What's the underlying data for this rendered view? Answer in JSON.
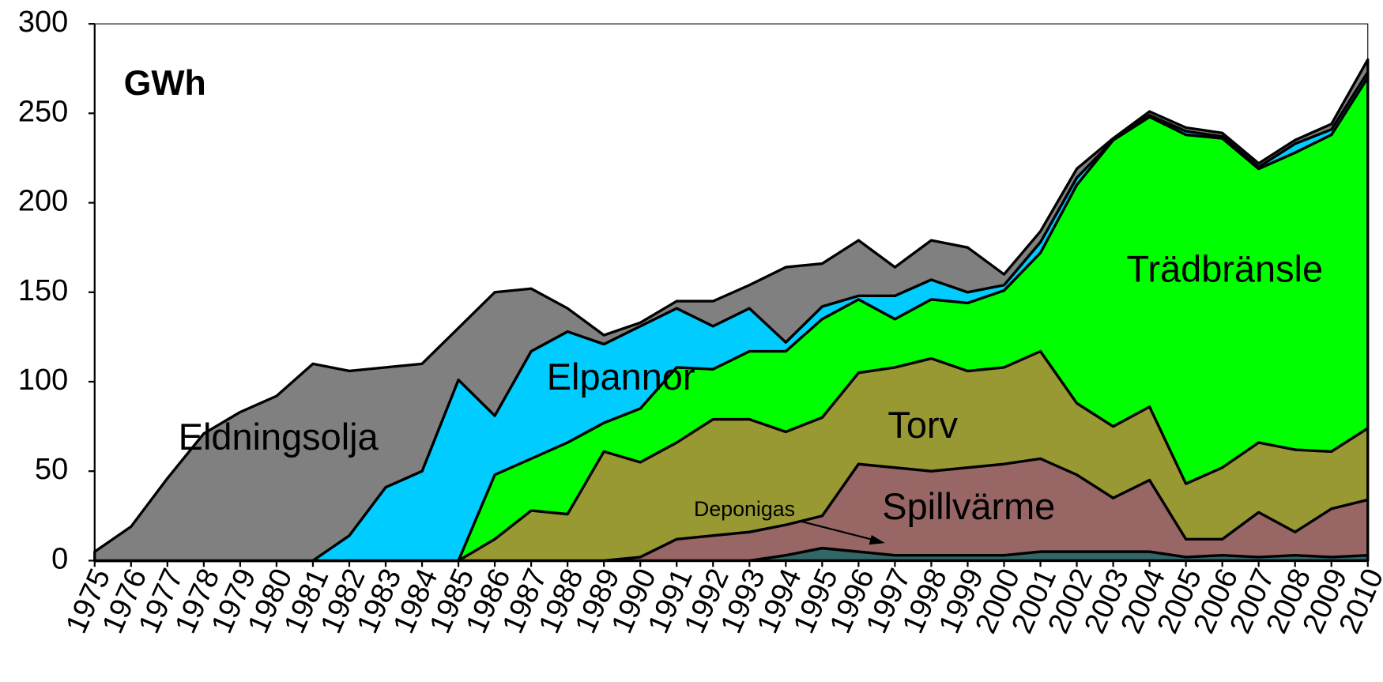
{
  "chart_data": {
    "type": "stacked-area",
    "y_label": "GWh",
    "x": [
      1975,
      1976,
      1977,
      1978,
      1979,
      1980,
      1981,
      1982,
      1983,
      1984,
      1985,
      1986,
      1987,
      1988,
      1989,
      1990,
      1991,
      1992,
      1993,
      1994,
      1995,
      1996,
      1997,
      1998,
      1999,
      2000,
      2001,
      2002,
      2003,
      2004,
      2005,
      2006,
      2007,
      2008,
      2009,
      2010
    ],
    "xlim": [
      1975,
      2010
    ],
    "xticks": [
      1975,
      1976,
      1977,
      1978,
      1979,
      1980,
      1981,
      1982,
      1983,
      1984,
      1985,
      1986,
      1987,
      1988,
      1989,
      1990,
      1991,
      1992,
      1993,
      1994,
      1995,
      1996,
      1997,
      1998,
      1999,
      2000,
      2001,
      2002,
      2003,
      2004,
      2005,
      2006,
      2007,
      2008,
      2009,
      2010
    ],
    "ylim": [
      0,
      300
    ],
    "yticks": [
      0,
      50,
      100,
      150,
      200,
      250,
      300
    ],
    "series": [
      {
        "name": "Deponigas",
        "color": "#336666",
        "values": [
          0,
          0,
          0,
          0,
          0,
          0,
          0,
          0,
          0,
          0,
          0,
          0,
          0,
          0,
          0,
          0,
          0,
          0,
          0,
          3,
          7,
          5,
          3,
          3,
          3,
          3,
          5,
          5,
          5,
          5,
          2,
          3,
          2,
          3,
          2,
          3
        ]
      },
      {
        "name": "Spillvärme",
        "color": "#996666",
        "values": [
          0,
          0,
          0,
          0,
          0,
          0,
          0,
          0,
          0,
          0,
          0,
          0,
          0,
          0,
          0,
          2,
          12,
          14,
          16,
          17,
          18,
          49,
          49,
          47,
          49,
          51,
          52,
          43,
          30,
          40,
          10,
          9,
          25,
          13,
          27,
          31
        ]
      },
      {
        "name": "Torv",
        "color": "#999933",
        "values": [
          0,
          0,
          0,
          0,
          0,
          0,
          0,
          0,
          0,
          0,
          0,
          12,
          28,
          26,
          61,
          53,
          54,
          65,
          63,
          52,
          55,
          51,
          56,
          63,
          54,
          54,
          60,
          40,
          40,
          41,
          31,
          40,
          39,
          46,
          32,
          40
        ]
      },
      {
        "name": "Trädbränsle",
        "color": "#00ff00",
        "values": [
          0,
          0,
          0,
          0,
          0,
          0,
          0,
          0,
          0,
          0,
          0,
          36,
          29,
          40,
          16,
          30,
          42,
          28,
          38,
          45,
          55,
          41,
          27,
          33,
          38,
          43,
          55,
          122,
          160,
          162,
          195,
          184,
          153,
          166,
          177,
          196
        ]
      },
      {
        "name": "Elpannor",
        "color": "#00ccff",
        "values": [
          0,
          0,
          0,
          0,
          0,
          0,
          0,
          14,
          41,
          50,
          101,
          33,
          60,
          62,
          44,
          46,
          33,
          24,
          24,
          5,
          7,
          2,
          13,
          11,
          6,
          3,
          6,
          4,
          0,
          1,
          2,
          1,
          1,
          5,
          3,
          3
        ]
      },
      {
        "name": "Eldningsolja",
        "color": "#808080",
        "values": [
          5,
          19,
          46,
          71,
          83,
          92,
          110,
          92,
          67,
          60,
          29,
          69,
          35,
          13,
          5,
          2,
          4,
          14,
          13,
          42,
          24,
          31,
          16,
          22,
          25,
          6,
          6,
          5,
          1,
          2,
          2,
          2,
          2,
          2,
          3,
          7
        ]
      }
    ]
  }
}
